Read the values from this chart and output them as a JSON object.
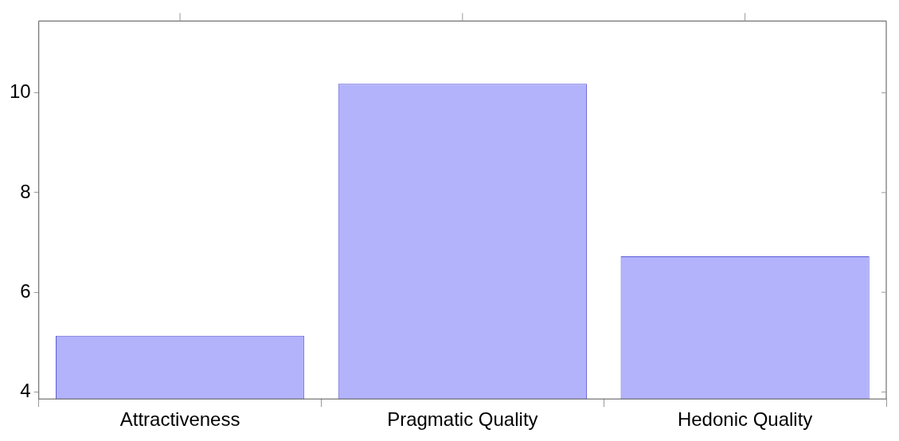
{
  "chart_data": {
    "type": "bar",
    "categories": [
      "Attractiveness",
      "Pragmatic Quality",
      "Hedonic Quality"
    ],
    "values": [
      5.13,
      10.18,
      6.72
    ],
    "color": "#b3b3fc",
    "ylim": [
      3.86,
      11.44
    ],
    "yticks": [
      4,
      6,
      8,
      10
    ],
    "grid": false
  }
}
